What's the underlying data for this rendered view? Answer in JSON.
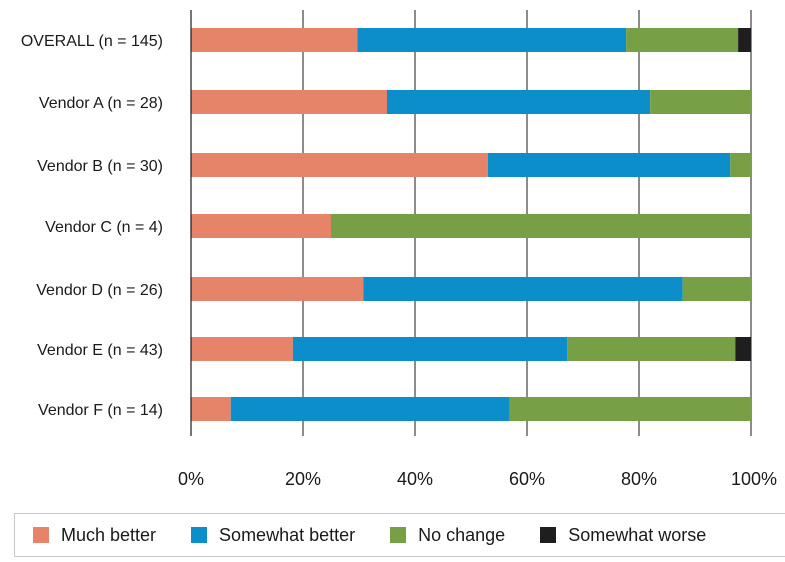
{
  "chart_data": {
    "type": "bar",
    "orientation": "horizontal",
    "stacked": "percent",
    "categories": [
      "OVERALL (n = 145)",
      "Vendor A (n = 28)",
      "Vendor B (n = 30)",
      "Vendor C (n = 4)",
      "Vendor D (n = 26)",
      "Vendor E (n = 43)",
      "Vendor F (n = 14)"
    ],
    "series": [
      {
        "name": "Much better",
        "color": "#e6846a",
        "values": [
          29.7,
          35.0,
          53.0,
          25.0,
          30.8,
          18.2,
          7.1
        ]
      },
      {
        "name": "Somewhat better",
        "color": "#0b8ec9",
        "values": [
          48.0,
          47.0,
          43.3,
          0.0,
          57.0,
          49.0,
          49.8
        ]
      },
      {
        "name": "No change",
        "color": "#77a046",
        "values": [
          20.0,
          18.0,
          3.7,
          75.0,
          12.2,
          30.0,
          43.1
        ]
      },
      {
        "name": "Somewhat worse",
        "color": "#1e1e1e",
        "values": [
          2.3,
          0.0,
          0.0,
          0.0,
          0.0,
          2.8,
          0.0
        ]
      }
    ],
    "xlim": [
      0,
      100
    ],
    "xticks": [
      "0%",
      "20%",
      "40%",
      "60%",
      "80%",
      "100%"
    ],
    "grid": "vertical",
    "legend_position": "bottom"
  }
}
